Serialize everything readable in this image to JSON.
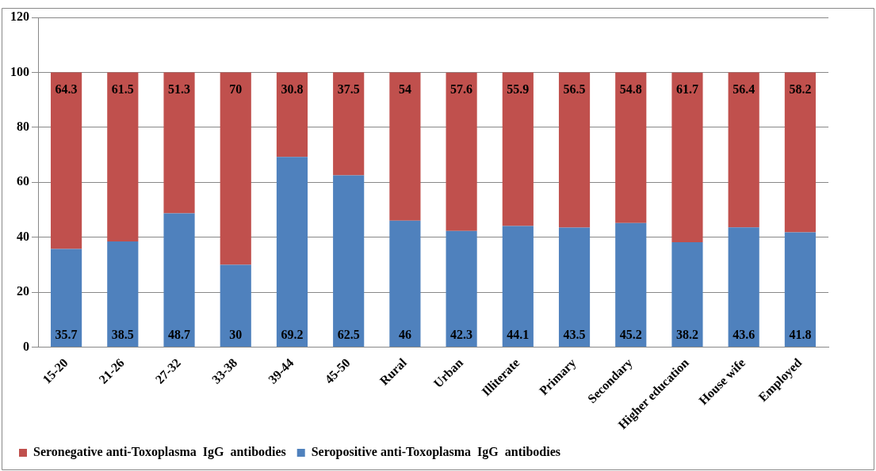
{
  "chart_data": {
    "type": "bar",
    "stacked": true,
    "categories": [
      "15-20",
      "21-26",
      "27-32",
      "33-38",
      "39-44",
      "45-50",
      "Rural",
      "Urban",
      "Illiterate",
      "Primary",
      "Secondary",
      "Higher education",
      "House wife",
      "Employed"
    ],
    "series": [
      {
        "name": "Seropositive anti-Toxoplasma  IgG  antibodies",
        "color": "#4f81bd",
        "values": [
          35.7,
          38.5,
          48.7,
          30,
          69.2,
          62.5,
          46,
          42.3,
          44.1,
          43.5,
          45.2,
          38.2,
          43.6,
          41.8
        ]
      },
      {
        "name": "Seronegative anti-Toxoplasma  IgG  antibodies",
        "color": "#c0504d",
        "values": [
          64.3,
          61.5,
          51.3,
          70,
          30.8,
          37.5,
          54,
          57.6,
          55.9,
          56.5,
          54.8,
          61.7,
          56.4,
          58.2
        ]
      }
    ],
    "ylim": [
      0,
      120
    ],
    "yticks": [
      0,
      20,
      40,
      60,
      80,
      100,
      120
    ],
    "grid": "y",
    "legend": "bottom left",
    "data_labels": true
  }
}
